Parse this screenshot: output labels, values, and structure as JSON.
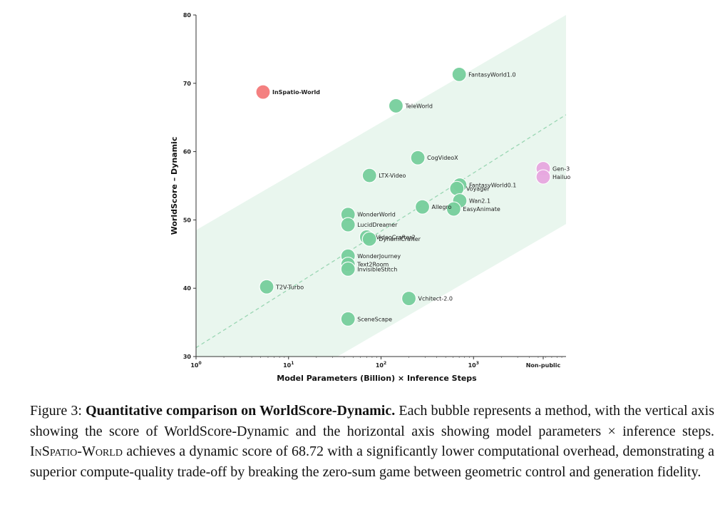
{
  "chart_data": {
    "type": "scatter",
    "xlabel": "Model Parameters (Billion) × Inference Steps",
    "ylabel": "WorldScore – Dynamic",
    "x_scale": "log",
    "xlim": [
      1,
      10000
    ],
    "ylim": [
      30,
      80
    ],
    "y_ticks": [
      30,
      40,
      50,
      60,
      70,
      80
    ],
    "x_ticks": [
      {
        "value": 1,
        "base": "10",
        "exp": "0"
      },
      {
        "value": 10,
        "base": "10",
        "exp": "1"
      },
      {
        "value": 100,
        "base": "10",
        "exp": "2"
      },
      {
        "value": 1000,
        "base": "10",
        "exp": "3"
      }
    ],
    "nonpublic_label": "Non-public",
    "band": {
      "lower_at_xmin": 18,
      "upper_at_xmin": 48.5,
      "lower_at_xmax": 49.4,
      "upper_at_xmax": 80
    },
    "trend_line": {
      "y_at_xmin": 31.3,
      "y_at_xmax": 65.4
    },
    "colors": {
      "highlight": "#f47a7a",
      "public": "#77cf9c",
      "nonpublic": "#e7a8e0",
      "band": "#e9f6ee",
      "trend": "#9ad6b3"
    },
    "points": [
      {
        "label": "InSpatio-World",
        "x": 5.3,
        "y": 68.72,
        "group": "highlight",
        "bold": true
      },
      {
        "label": "FantasyWorld1.0",
        "x": 700,
        "y": 71.3,
        "group": "public"
      },
      {
        "label": "TeleWorld",
        "x": 145,
        "y": 66.7,
        "group": "public"
      },
      {
        "label": "CogVideoX",
        "x": 250,
        "y": 59.1,
        "group": "public"
      },
      {
        "label": "LTX-Video",
        "x": 75,
        "y": 56.5,
        "group": "public"
      },
      {
        "label": "FantasyWorld0.1",
        "x": 710,
        "y": 55.1,
        "group": "public"
      },
      {
        "label": "Voyager",
        "x": 660,
        "y": 54.6,
        "group": "public"
      },
      {
        "label": "Wan2.1",
        "x": 710,
        "y": 52.8,
        "group": "public"
      },
      {
        "label": "Allegro",
        "x": 280,
        "y": 51.9,
        "group": "public"
      },
      {
        "label": "EasyAnimate",
        "x": 610,
        "y": 51.6,
        "group": "public"
      },
      {
        "label": "WonderWorld",
        "x": 44,
        "y": 50.8,
        "group": "public"
      },
      {
        "label": "LucidDreamer",
        "x": 44,
        "y": 49.3,
        "group": "public"
      },
      {
        "label": "VideoCrafter2",
        "x": 70,
        "y": 47.5,
        "group": "public"
      },
      {
        "label": "DynamiCrafter",
        "x": 75,
        "y": 47.2,
        "group": "public"
      },
      {
        "label": "WonderJourney",
        "x": 44,
        "y": 44.7,
        "group": "public"
      },
      {
        "label": "Text2Room",
        "x": 44,
        "y": 43.5,
        "group": "public"
      },
      {
        "label": "InvisibleStitch",
        "x": 44,
        "y": 42.8,
        "group": "public"
      },
      {
        "label": "T2V-Turbo",
        "x": 5.8,
        "y": 40.2,
        "group": "public"
      },
      {
        "label": "Vchitect-2.0",
        "x": 200,
        "y": 38.5,
        "group": "public"
      },
      {
        "label": "SceneScape",
        "x": 44,
        "y": 35.5,
        "group": "public"
      },
      {
        "label": "Gen-3",
        "x": null,
        "y": 57.5,
        "group": "nonpublic"
      },
      {
        "label": "Hailuo",
        "x": null,
        "y": 56.3,
        "group": "nonpublic"
      }
    ]
  },
  "caption": {
    "prefix": "Figure 3: ",
    "bold_title": "Quantitative comparison on WorldScore-Dynamic.",
    "body_1": " Each bubble represents a method, with the vertical axis showing the score of WorldScore-Dynamic and the horizontal axis showing model parameters × inference steps. ",
    "name": "InSpatio-World",
    "body_2": " achieves a dynamic score of 68.72 with a significantly lower computational overhead, demonstrating a superior compute-quality trade-off by breaking the zero-sum game between geometric control and generation fidelity."
  }
}
